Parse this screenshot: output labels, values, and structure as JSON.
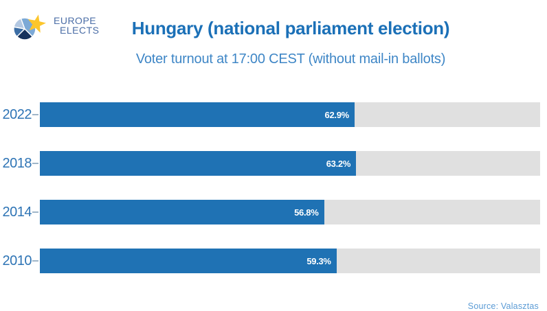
{
  "header": {
    "logo_line1": "EUROPE",
    "logo_line2": "ELECTS",
    "title": "Hungary (national parliament election)",
    "subtitle": "Voter turnout at 17:00 CEST (without mail-in ballots)"
  },
  "chart_data": {
    "type": "bar",
    "orientation": "horizontal",
    "title": "Hungary (national parliament election)",
    "subtitle": "Voter turnout at 17:00 CEST (without mail-in ballots)",
    "categories": [
      "2022",
      "2018",
      "2014",
      "2010"
    ],
    "values": [
      62.9,
      63.2,
      56.8,
      59.3
    ],
    "value_labels": [
      "62.9%",
      "63.2%",
      "56.8%",
      "59.3%"
    ],
    "xlabel": "",
    "ylabel": "",
    "xlim": [
      0,
      100
    ],
    "grid": false,
    "legend": false,
    "bar_color": "#1f72b4",
    "track_color": "#e0e0e0",
    "value_label_color": "#ffffff",
    "category_label_color": "#2e74b5"
  },
  "footer": {
    "source": "Source: Valasztas"
  },
  "colors": {
    "title_blue": "#1b70b7",
    "subtitle_blue": "#3e86c6",
    "brand_yellow": "#fcc62c"
  }
}
